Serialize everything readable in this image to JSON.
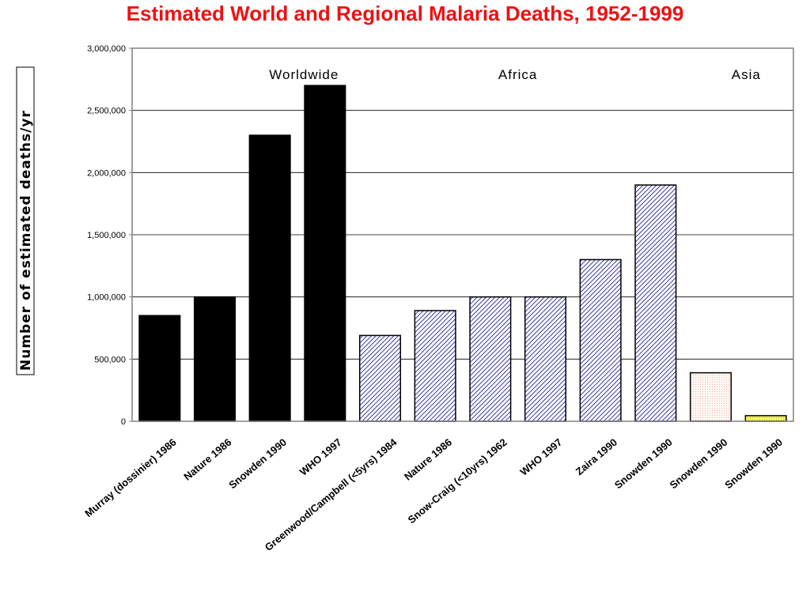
{
  "chart_data": {
    "type": "bar",
    "title": "Estimated World and Regional Malaria Deaths, 1952-1999",
    "ylabel": "Number of estimated deaths/yr",
    "xlabel": "",
    "ylim": [
      0,
      3000000
    ],
    "yticks": [
      "0",
      "500,000",
      "1,000,000",
      "1,500,000",
      "2,000,000",
      "2,500,000",
      "3,000,000"
    ],
    "grid": "horizontal",
    "groups": [
      {
        "name": "Worldwide",
        "pattern": "solid",
        "color": "#000000"
      },
      {
        "name": "Africa",
        "pattern": "diagonal-hatch",
        "color": "#3333aa"
      },
      {
        "name": "Asia",
        "pattern": "dotted",
        "color": "#f2c8c0"
      }
    ],
    "categories": [
      "Murray (dossinier) 1986",
      "Nature 1986",
      "Snowden 1990",
      "WHO 1997",
      "Greenwood/Campbell (<5yrs) 1984",
      "Nature 1986",
      "Snow-Craig (<10yrs) 1962",
      "WHO 1997",
      "Zaira 1990",
      "Snowden 1990",
      "Snowden 1990",
      "Snowden 1990"
    ],
    "values": [
      850000,
      1000000,
      2300000,
      2700000,
      690000,
      890000,
      1000000,
      1000000,
      1300000,
      1900000,
      390000,
      45000
    ],
    "bar_group": [
      0,
      0,
      0,
      0,
      1,
      1,
      1,
      1,
      1,
      1,
      2,
      2
    ]
  }
}
